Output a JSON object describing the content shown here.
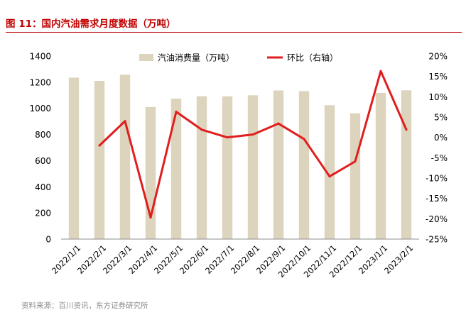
{
  "figure": {
    "title": "图 11：国内汽油需求月度数据（万吨）",
    "source": "资料来源：百川资讯，东方证券研究所"
  },
  "colors": {
    "title": "#c00000",
    "bar": "#ddd4bd",
    "line": "#e01e1e",
    "axis": "#8c8c8c",
    "text": "#000000",
    "source": "#8c8c8c"
  },
  "chart_data": {
    "type": "bar",
    "categories": [
      "2022/1/1",
      "2022/2/1",
      "2022/3/1",
      "2022/4/1",
      "2022/5/1",
      "2022/6/1",
      "2022/7/1",
      "2022/8/1",
      "2022/9/1",
      "2022/10/1",
      "2022/11/1",
      "2022/12/1",
      "2023/1/1",
      "2023/2/1"
    ],
    "series": [
      {
        "name": "汽油消费量（万吨）",
        "type": "bar",
        "axis": "left",
        "values": [
          1235,
          1210,
          1258,
          1010,
          1075,
          1092,
          1092,
          1100,
          1137,
          1132,
          1024,
          962,
          1118,
          1138
        ]
      },
      {
        "name": "环比（右轴）",
        "type": "line",
        "axis": "right",
        "unit": "%",
        "values": [
          null,
          -2.0,
          4.0,
          -19.7,
          6.3,
          1.9,
          0.0,
          0.7,
          3.4,
          -0.4,
          -9.6,
          -5.9,
          16.3,
          1.9
        ]
      }
    ],
    "y_left": {
      "ylim": [
        0,
        1400
      ],
      "ticks": [
        0,
        200,
        400,
        600,
        800,
        1000,
        1200,
        1400
      ]
    },
    "y_right": {
      "ylim": [
        -25,
        20
      ],
      "ticks": [
        -25,
        -20,
        -15,
        -10,
        -5,
        0,
        5,
        10,
        15,
        20
      ],
      "suffix": "%"
    },
    "grid": false,
    "legend": "top-center"
  }
}
